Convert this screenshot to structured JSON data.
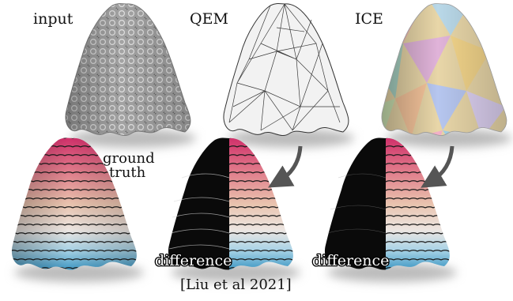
{
  "labels": {
    "input": "input",
    "qem": "QEM",
    "ice": "ICE",
    "ground_truth_line1": "ground",
    "ground_truth_line2": "truth",
    "difference_qem": "difference",
    "difference_ice": "difference",
    "citation": "[Liu et al 2021]"
  },
  "colors": {
    "cloth_gray": "#9b9b9b",
    "wire_white": "#f2f2f2",
    "contour_red": "#d0306a",
    "contour_peach": "#e9c3ae",
    "contour_blue": "#3f98c4",
    "difference_black": "#0a0a0a"
  }
}
